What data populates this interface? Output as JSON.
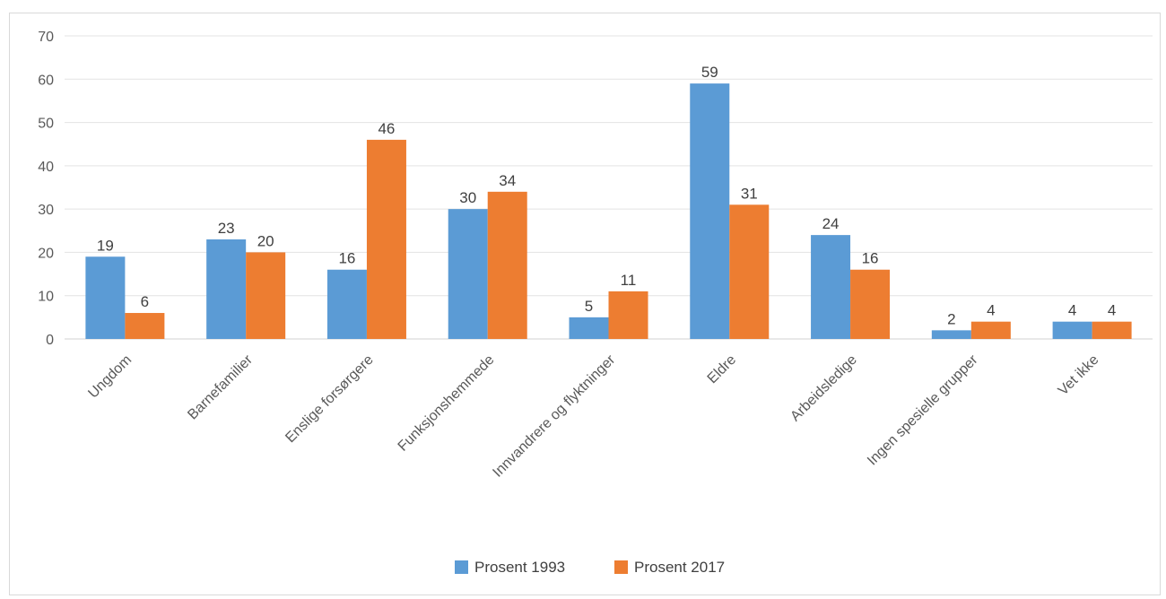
{
  "chart_data": {
    "type": "bar",
    "categories": [
      "Ungdom",
      "Barnefamilier",
      "Enslige forsørgere",
      "Funksjonshemmede",
      "Innvandrere og flyktninger",
      "Eldre",
      "Arbeidsledige",
      "Ingen spesielle grupper",
      "Vet ikke"
    ],
    "series": [
      {
        "name": "Prosent 1993",
        "color": "#5b9bd5",
        "values": [
          19,
          23,
          16,
          30,
          5,
          59,
          24,
          2,
          4
        ]
      },
      {
        "name": "Prosent 2017",
        "color": "#ed7d31",
        "values": [
          6,
          20,
          46,
          34,
          11,
          31,
          16,
          4,
          4
        ]
      }
    ],
    "title": "",
    "xlabel": "",
    "ylabel": "",
    "ylim": [
      0,
      70
    ],
    "yticks": [
      0,
      10,
      20,
      30,
      40,
      50,
      60,
      70
    ],
    "grid": true,
    "legend_position": "bottom"
  }
}
